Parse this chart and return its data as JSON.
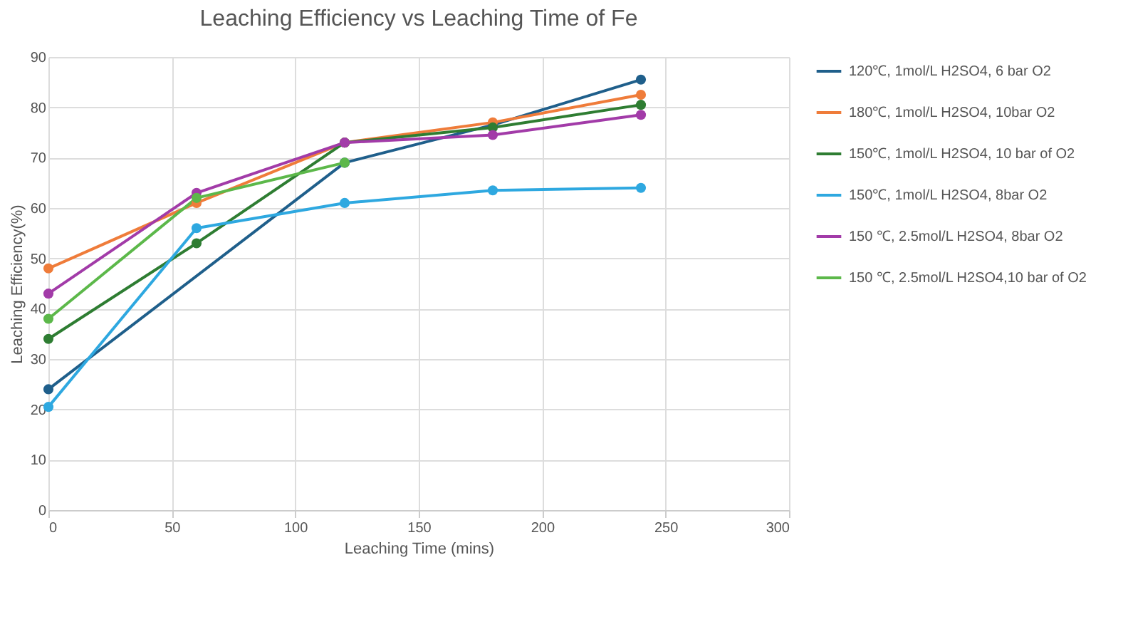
{
  "chart_data": {
    "type": "line",
    "title": "Leaching Efficiency vs Leaching Time of Fe",
    "xlabel": "Leaching Time (mins)",
    "ylabel": "Leaching Efficiency(%)",
    "xlim": [
      0,
      300
    ],
    "xticks": [
      0,
      50,
      100,
      150,
      200,
      250,
      300
    ],
    "ylim": [
      0,
      90
    ],
    "yticks": [
      0,
      10,
      20,
      30,
      40,
      50,
      60,
      70,
      80,
      90
    ],
    "grid": true,
    "legend": "right",
    "marker": "circle",
    "line_style": "solid",
    "series": [
      {
        "name": "120℃,  1mol/L H2SO4, 6 bar O2",
        "color": "#1f5f8b",
        "x": [
          0,
          120,
          180,
          240
        ],
        "values": [
          24,
          69,
          76.5,
          85.5
        ]
      },
      {
        "name": "180℃, 1mol/L H2SO4, 10bar O2",
        "color": "#ef7c3a",
        "x": [
          0,
          60,
          120,
          180,
          240
        ],
        "values": [
          48,
          61,
          73,
          77,
          82.5
        ]
      },
      {
        "name": "150℃, 1mol/L H2SO4, 10 bar of O2",
        "color": "#2e7d32",
        "x": [
          0,
          60,
          120,
          180,
          240
        ],
        "values": [
          34,
          53,
          73,
          76,
          80.5
        ]
      },
      {
        "name": "150℃, 1mol/L H2SO4, 8bar O2",
        "color": "#2ea8e0",
        "x": [
          0,
          60,
          120,
          180,
          240
        ],
        "values": [
          20.5,
          56,
          61,
          63.5,
          64
        ]
      },
      {
        "name": "150 ℃, 2.5mol/L H2SO4, 8bar O2",
        "color": "#a23ba8",
        "x": [
          0,
          60,
          120,
          180,
          240
        ],
        "values": [
          43,
          63,
          73,
          74.5,
          78.5
        ]
      },
      {
        "name": "150 ℃, 2.5mol/L H2SO4,10 bar of O2",
        "color": "#5cb84a",
        "x": [
          0,
          60,
          120
        ],
        "values": [
          38,
          62,
          69
        ]
      }
    ]
  }
}
